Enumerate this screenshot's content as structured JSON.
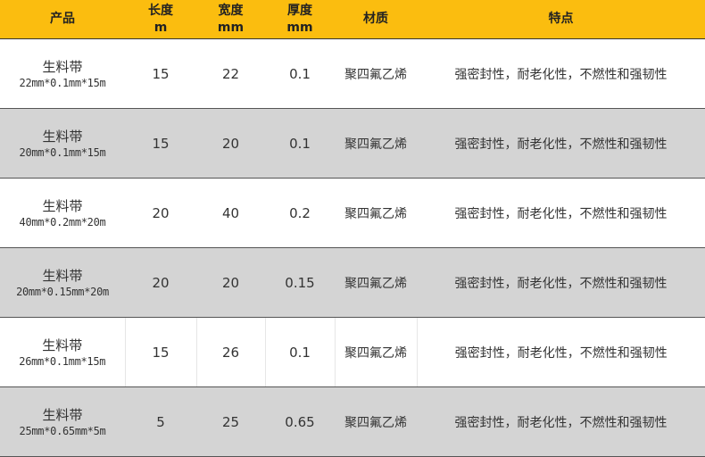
{
  "header": {
    "product": "产品",
    "length": [
      "长度",
      "m"
    ],
    "width": [
      "宽度",
      "mm"
    ],
    "thickness": [
      "厚度",
      "mm"
    ],
    "material": "材质",
    "feature": "特点"
  },
  "colors": {
    "header_bg": "#fbbd0f",
    "gray_row": "#d4d4d4"
  },
  "rows": [
    {
      "name": "生料带",
      "spec": "22mm*0.1mm*15m",
      "length": "15",
      "width": "22",
      "thickness": "0.1",
      "material": "聚四氟乙烯",
      "feature": "强密封性，耐老化性，不燃性和强韧性"
    },
    {
      "name": "生料带",
      "spec": "20mm*0.1mm*15m",
      "length": "15",
      "width": "20",
      "thickness": "0.1",
      "material": "聚四氟乙烯",
      "feature": "强密封性，耐老化性，不燃性和强韧性"
    },
    {
      "name": "生料带",
      "spec": "40mm*0.2mm*20m",
      "length": "20",
      "width": "40",
      "thickness": "0.2",
      "material": "聚四氟乙烯",
      "feature": "强密封性，耐老化性，不燃性和强韧性"
    },
    {
      "name": "生料带",
      "spec": "20mm*0.15mm*20m",
      "length": "20",
      "width": "20",
      "thickness": "0.15",
      "material": "聚四氟乙烯",
      "feature": "强密封性，耐老化性，不燃性和强韧性"
    },
    {
      "name": "生料带",
      "spec": "26mm*0.1mm*15m",
      "length": "15",
      "width": "26",
      "thickness": "0.1",
      "material": "聚四氟乙烯",
      "feature": "强密封性，耐老化性，不燃性和强韧性"
    },
    {
      "name": "生料带",
      "spec": "25mm*0.65mm*5m",
      "length": "5",
      "width": "25",
      "thickness": "0.65",
      "material": "聚四氟乙烯",
      "feature": "强密封性，耐老化性，不燃性和强韧性"
    }
  ]
}
